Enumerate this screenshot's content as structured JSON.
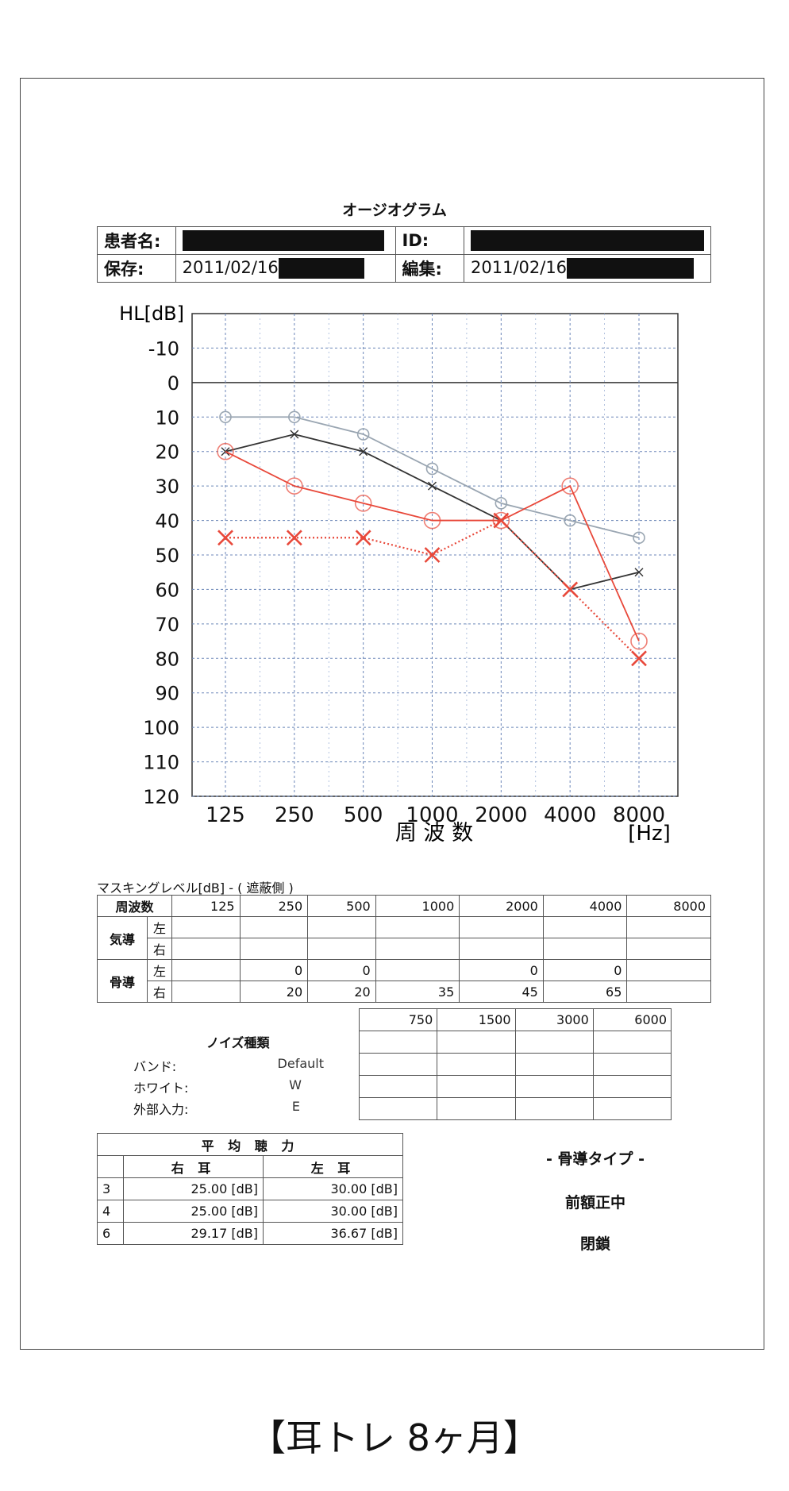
{
  "title": "オージオグラム",
  "info": {
    "patient_label": "患者名:",
    "id_label": "ID:",
    "saved_label": "保存:",
    "saved_date": "2011/02/16",
    "edited_label": "編集:",
    "edited_date": "2011/02/16"
  },
  "chart_data": {
    "type": "line",
    "ylabel": "HL[dB]",
    "xlabel": "周 波 数",
    "xunit": "[Hz]",
    "categories": [
      "125",
      "250",
      "500",
      "1000",
      "2000",
      "4000",
      "8000"
    ],
    "yticks": [
      "-10",
      "0",
      "10",
      "20",
      "30",
      "40",
      "50",
      "60",
      "70",
      "80",
      "90",
      "100",
      "110",
      "120"
    ],
    "ylim": [
      -20,
      120
    ],
    "y_inverted": true,
    "grid": true,
    "series": [
      {
        "color": "#9aa6b2",
        "marker": "circle",
        "line": "solid",
        "values": [
          10,
          10,
          15,
          25,
          35,
          40,
          45
        ]
      },
      {
        "color": "#333333",
        "marker": "x-small",
        "line": "solid",
        "values": [
          20,
          15,
          20,
          30,
          40,
          60,
          55
        ]
      },
      {
        "color": "#e8483a",
        "marker": "circle",
        "line": "solid",
        "values": [
          20,
          30,
          35,
          40,
          40,
          30,
          75
        ]
      },
      {
        "color": "#e8483a",
        "marker": "x",
        "line": "dotted",
        "values": [
          45,
          45,
          45,
          50,
          40,
          60,
          80
        ]
      }
    ]
  },
  "masking": {
    "title": "マスキングレベル[dB] - ( 遮蔽側 )",
    "freq_label": "周波数",
    "freqs": [
      "125",
      "250",
      "500",
      "1000",
      "2000",
      "4000",
      "8000"
    ],
    "air_label": "気導",
    "bone_label": "骨導",
    "left": "左",
    "right": "右",
    "air_left": [
      "",
      "",
      "",
      "",
      "",
      "",
      ""
    ],
    "air_right": [
      "",
      "",
      "",
      "",
      "",
      "",
      ""
    ],
    "bone_left": [
      "",
      "0",
      "0",
      "",
      "0",
      "0",
      ""
    ],
    "bone_right": [
      "",
      "20",
      "20",
      "35",
      "45",
      "65",
      ""
    ]
  },
  "extra_freqs": [
    "750",
    "1500",
    "3000",
    "6000"
  ],
  "noise": {
    "title": "ノイズ種類",
    "band_label": "バンド:",
    "band_value": "Default",
    "white_label": "ホワイト:",
    "white_value": "W",
    "external_label": "外部入力:",
    "external_value": "E"
  },
  "average": {
    "title": "平 均 聴 力",
    "right_ear": "右 耳",
    "left_ear": "左 耳",
    "rows": [
      {
        "n": "3",
        "right": "25.00",
        "left": "30.00"
      },
      {
        "n": "4",
        "right": "25.00",
        "left": "30.00"
      },
      {
        "n": "6",
        "right": "29.17",
        "left": "36.67"
      }
    ],
    "unit": "[dB]"
  },
  "bone_type": {
    "title": "- 骨導タイプ -",
    "position": "前額正中",
    "state": "閉鎖"
  },
  "caption": "【耳トレ 8ヶ月】"
}
